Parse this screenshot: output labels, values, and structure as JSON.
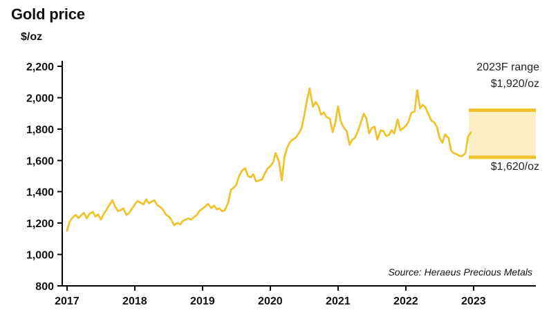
{
  "colors": {
    "line": "#EFC32E",
    "band_fill": "#FBF0C3",
    "band_edge": "#EFC32E",
    "axis": "#000000",
    "text": "#111111"
  },
  "chart_data": {
    "type": "line",
    "title": "Gold price",
    "ylabel": "$/oz",
    "xlabel": "",
    "source": "Source: Heraeus Precious Metals",
    "grid": false,
    "legend": "none",
    "ylim": [
      800,
      2200
    ],
    "xlim": [
      2016.93,
      2023.92
    ],
    "yticks": [
      800,
      1000,
      1200,
      1400,
      1600,
      1800,
      2000,
      2200
    ],
    "ytick_labels": [
      "800",
      "1,000",
      "1,200",
      "1,400",
      "1,600",
      "1,800",
      "2,000",
      "2,200"
    ],
    "xticks": [
      2017,
      2018,
      2019,
      2020,
      2021,
      2022,
      2023
    ],
    "xtick_labels": [
      "2017",
      "2018",
      "2019",
      "2020",
      "2021",
      "2022",
      "2023"
    ],
    "forecast_band": {
      "label": "2023F range",
      "high_label": "$1,920/oz",
      "low_label": "$1,620/oz",
      "high": 1920,
      "low": 1620,
      "x_start": 2022.93,
      "x_end": 2023.92
    },
    "series": [
      {
        "name": "Gold price ($/oz)",
        "x": [
          2017.0,
          2017.04,
          2017.08,
          2017.13,
          2017.17,
          2017.21,
          2017.25,
          2017.29,
          2017.33,
          2017.38,
          2017.42,
          2017.46,
          2017.5,
          2017.54,
          2017.58,
          2017.63,
          2017.67,
          2017.71,
          2017.75,
          2017.79,
          2017.83,
          2017.88,
          2017.92,
          2017.96,
          2018.0,
          2018.04,
          2018.08,
          2018.13,
          2018.17,
          2018.21,
          2018.25,
          2018.29,
          2018.33,
          2018.38,
          2018.42,
          2018.46,
          2018.5,
          2018.54,
          2018.58,
          2018.63,
          2018.67,
          2018.71,
          2018.75,
          2018.79,
          2018.83,
          2018.88,
          2018.92,
          2018.96,
          2019.0,
          2019.04,
          2019.08,
          2019.13,
          2019.17,
          2019.21,
          2019.25,
          2019.29,
          2019.33,
          2019.38,
          2019.42,
          2019.46,
          2019.5,
          2019.54,
          2019.58,
          2019.63,
          2019.67,
          2019.71,
          2019.75,
          2019.79,
          2019.83,
          2019.88,
          2019.92,
          2019.96,
          2020.0,
          2020.04,
          2020.08,
          2020.13,
          2020.17,
          2020.21,
          2020.25,
          2020.29,
          2020.33,
          2020.38,
          2020.42,
          2020.46,
          2020.5,
          2020.54,
          2020.58,
          2020.63,
          2020.67,
          2020.71,
          2020.75,
          2020.79,
          2020.83,
          2020.88,
          2020.92,
          2020.96,
          2021.0,
          2021.04,
          2021.08,
          2021.13,
          2021.17,
          2021.21,
          2021.25,
          2021.29,
          2021.33,
          2021.38,
          2021.42,
          2021.46,
          2021.5,
          2021.54,
          2021.58,
          2021.63,
          2021.67,
          2021.71,
          2021.75,
          2021.79,
          2021.83,
          2021.88,
          2021.92,
          2021.96,
          2022.0,
          2022.04,
          2022.08,
          2022.13,
          2022.17,
          2022.21,
          2022.25,
          2022.29,
          2022.33,
          2022.38,
          2022.42,
          2022.46,
          2022.5,
          2022.54,
          2022.58,
          2022.63,
          2022.67,
          2022.71,
          2022.75,
          2022.79,
          2022.83,
          2022.88,
          2022.92,
          2022.96
        ],
        "y": [
          1151,
          1210,
          1235,
          1252,
          1232,
          1250,
          1266,
          1230,
          1258,
          1272,
          1242,
          1256,
          1222,
          1256,
          1284,
          1318,
          1346,
          1306,
          1278,
          1282,
          1294,
          1252,
          1266,
          1292,
          1318,
          1340,
          1332,
          1320,
          1352,
          1326,
          1338,
          1346,
          1316,
          1302,
          1284,
          1254,
          1242,
          1222,
          1186,
          1202,
          1192,
          1214,
          1222,
          1230,
          1222,
          1240,
          1254,
          1280,
          1292,
          1306,
          1322,
          1296,
          1312,
          1288,
          1294,
          1276,
          1282,
          1332,
          1412,
          1426,
          1446,
          1500,
          1532,
          1550,
          1502,
          1492,
          1512,
          1466,
          1472,
          1478,
          1516,
          1548,
          1562,
          1586,
          1646,
          1592,
          1472,
          1622,
          1682,
          1716,
          1732,
          1746,
          1772,
          1802,
          1882,
          1978,
          2058,
          1942,
          1972,
          1948,
          1892,
          1906,
          1876,
          1866,
          1780,
          1838,
          1944,
          1850,
          1812,
          1784,
          1700,
          1732,
          1744,
          1782,
          1832,
          1898,
          1866,
          1772,
          1806,
          1816,
          1732,
          1792,
          1788,
          1756,
          1762,
          1792,
          1772,
          1862,
          1792,
          1804,
          1820,
          1846,
          1902,
          1912,
          2048,
          1932,
          1954,
          1938,
          1898,
          1852,
          1842,
          1814,
          1742,
          1712,
          1766,
          1744,
          1662,
          1646,
          1640,
          1630,
          1626,
          1646,
          1752,
          1778
        ]
      }
    ]
  }
}
